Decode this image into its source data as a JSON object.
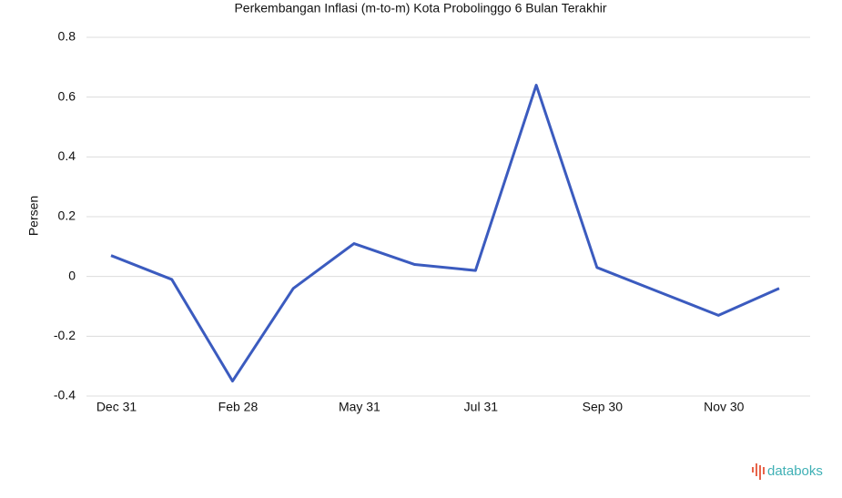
{
  "chart_data": {
    "type": "line",
    "title": "Perkembangan Inflasi (m-to-m) Kota Probolinggo 6 Bulan Terakhir",
    "y_label": "Persen",
    "categories": [
      "Dec 31",
      null,
      "Feb 28",
      null,
      "May 31",
      null,
      "Jul 31",
      null,
      "Sep 30",
      null,
      "Nov 30",
      null
    ],
    "series": [
      {
        "name": "Inflasi",
        "color": "#3b5bbf",
        "values": [
          0.07,
          -0.01,
          -0.35,
          -0.04,
          0.11,
          0.04,
          0.02,
          0.64,
          0.03,
          -0.05,
          -0.13,
          -0.04
        ]
      }
    ],
    "ylim": [
      -0.4,
      0.8
    ],
    "yticks": [
      -0.4,
      -0.2,
      0,
      0.2,
      0.4,
      0.6,
      0.8
    ],
    "grid": true
  },
  "brand": "databoks"
}
